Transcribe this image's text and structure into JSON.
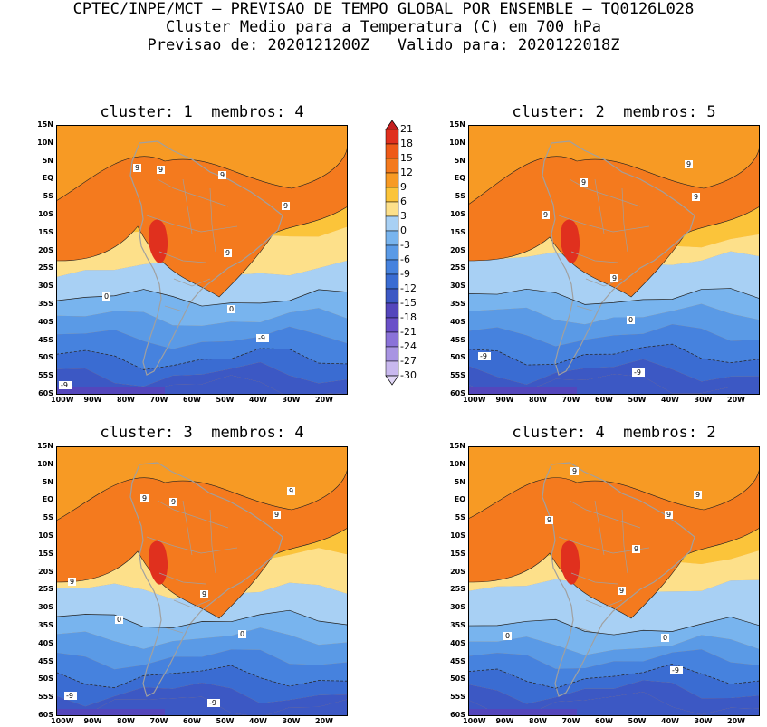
{
  "header": {
    "line1": "CPTEC/INPE/MCT – PREVISAO DE TEMPO GLOBAL POR ENSEMBLE – TQ0126L028",
    "line2": "Cluster Medio para a Temperatura (C) em 700 hPa",
    "line3": "Previsao de: 2020121200Z   Valido para: 2020122018Z"
  },
  "panels": [
    {
      "title": "cluster: 1  membros: 4",
      "contour_labels": [
        "9",
        "9",
        "9",
        "9",
        "9",
        "0",
        "0",
        "-9",
        "-9"
      ]
    },
    {
      "title": "cluster: 2  membros: 5",
      "contour_labels": [
        "9",
        "9",
        "9",
        "9",
        "9",
        "0",
        "-9",
        "-9"
      ]
    },
    {
      "title": "cluster: 3  membros: 4",
      "contour_labels": [
        "9",
        "9",
        "9",
        "9",
        "9",
        "9",
        "0",
        "0",
        "-9",
        "-9"
      ]
    },
    {
      "title": "cluster: 4  membros: 2",
      "contour_labels": [
        "9",
        "9",
        "9",
        "9",
        "9",
        "9",
        "0",
        "0",
        "-9"
      ]
    }
  ],
  "lat_labels": [
    "15N",
    "10N",
    "5N",
    "EQ",
    "5S",
    "10S",
    "15S",
    "20S",
    "25S",
    "30S",
    "35S",
    "40S",
    "45S",
    "50S",
    "55S",
    "60S"
  ],
  "lon_labels": [
    "100W",
    "90W",
    "80W",
    "70W",
    "60W",
    "50W",
    "40W",
    "30W",
    "20W"
  ],
  "colorbar": {
    "labels": [
      "21",
      "18",
      "15",
      "12",
      "9",
      "6",
      "3",
      "0",
      "-3",
      "-6",
      "-9",
      "-12",
      "-15",
      "-18",
      "-21",
      "-24",
      "-27",
      "-30"
    ],
    "colors": [
      "#c41e1e",
      "#e0301e",
      "#ee5a18",
      "#f47a1e",
      "#f79a24",
      "#fbc43a",
      "#fde08a",
      "#a8d0f4",
      "#78b4ee",
      "#5a9ae6",
      "#4682de",
      "#3a6cd2",
      "#3c58c4",
      "#5446bc",
      "#6a50c8",
      "#8a72d8",
      "#a894e2",
      "#c8b8ee",
      "#e0d6f6"
    ]
  }
}
